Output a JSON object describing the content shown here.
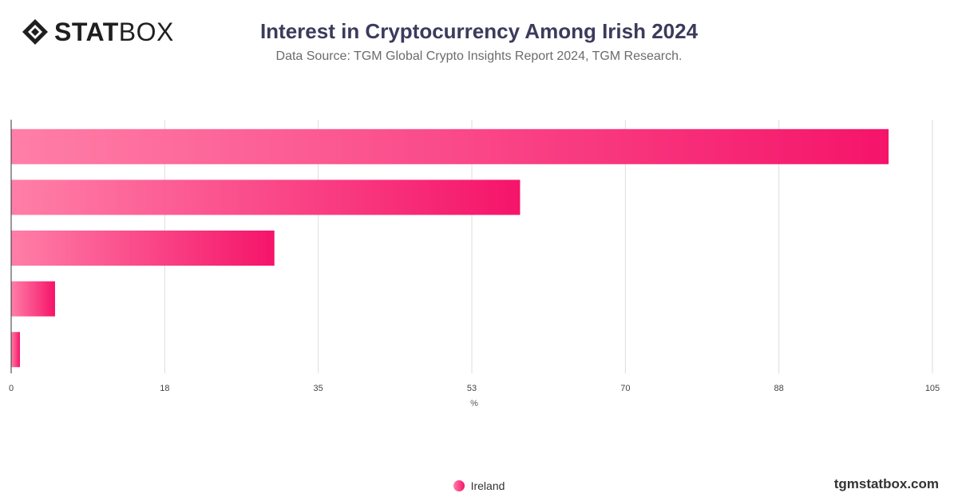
{
  "header": {
    "logo_bold": "STAT",
    "logo_light": "BOX",
    "title": "Interest in Cryptocurrency Among Irish 2024",
    "subtitle": "Data Source: TGM Global Crypto Insights Report 2024, TGM Research."
  },
  "footer": {
    "site": "tgmstatbox.com"
  },
  "colors": {
    "bar_start": "#ff7fa8",
    "bar_end": "#f5146a",
    "grid": "#dddddd",
    "axis": "#333333"
  },
  "chart_data": {
    "type": "bar",
    "orientation": "horizontal",
    "categories": [
      "",
      "",
      "",
      "",
      ""
    ],
    "series": [
      {
        "name": "Ireland",
        "values": [
          100,
          58,
          30,
          5,
          1
        ]
      }
    ],
    "xlabel": "%",
    "xlim": [
      0,
      105
    ],
    "ticks": [
      "0",
      "18",
      "35",
      "53",
      "70",
      "88",
      "105"
    ],
    "tick_values": [
      0,
      17.5,
      35,
      52.5,
      70,
      87.5,
      105
    ],
    "grid": true,
    "legend": "bottom-center"
  }
}
